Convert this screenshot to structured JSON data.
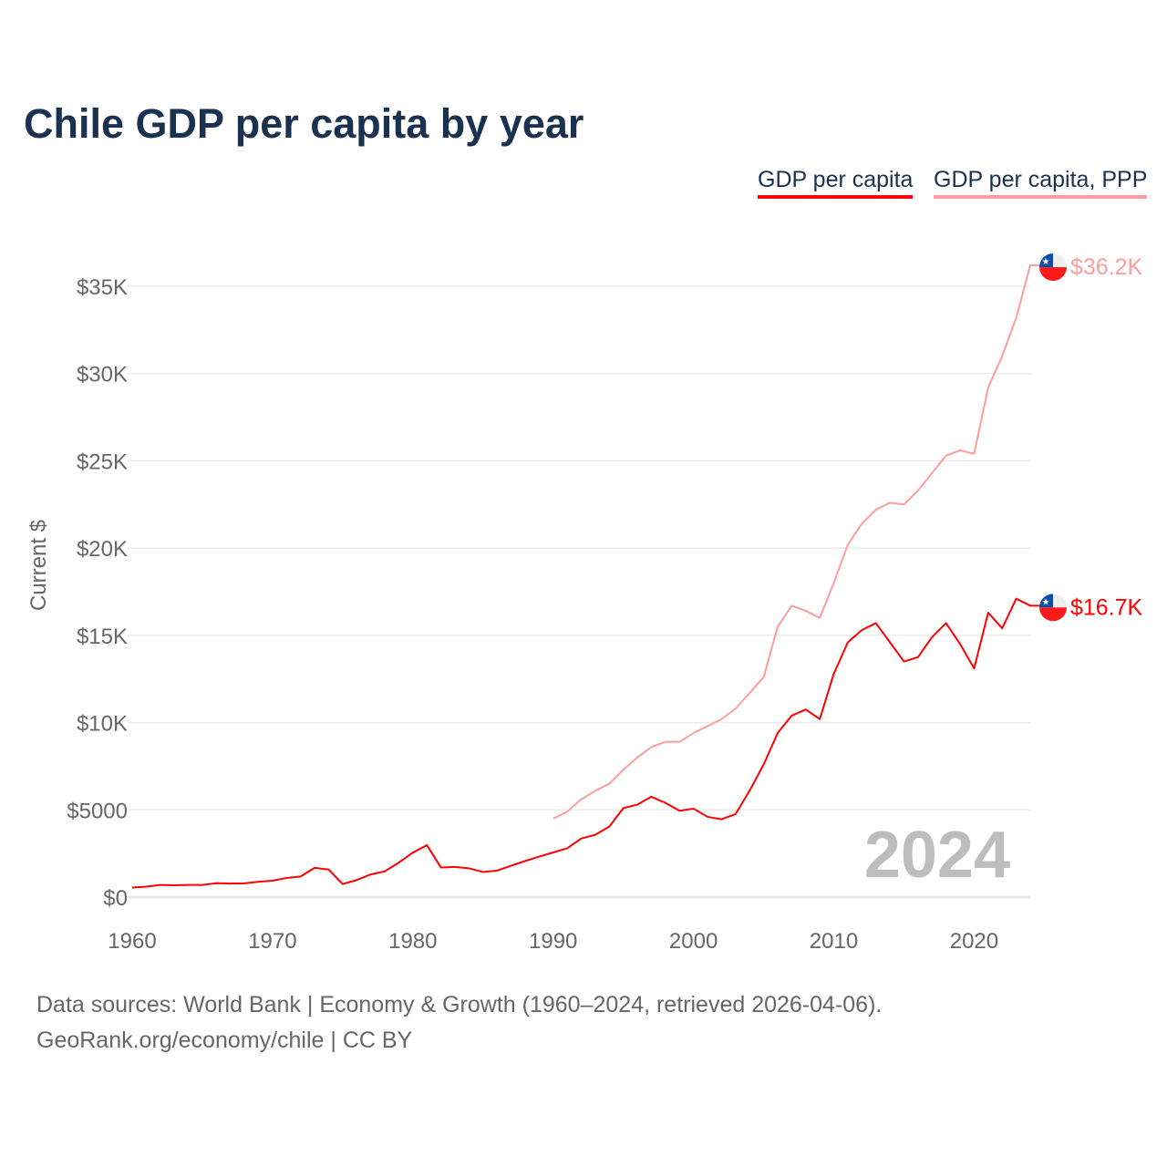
{
  "title": "Chile GDP per capita by year",
  "legend": [
    {
      "label": "GDP per capita",
      "color": "#ff0000"
    },
    {
      "label": "GDP per capita, PPP",
      "color": "#ff9d9d"
    }
  ],
  "footer": {
    "line1": "Data sources: World Bank | Economy & Growth (1960–2024, retrieved 2026-04-06).",
    "line2": "GeoRank.org/economy/chile | CC BY"
  },
  "chart_data": {
    "type": "line",
    "title": "Chile GDP per capita by year",
    "ylabel": "Current $",
    "xlabel": "",
    "xlim": [
      1960,
      2024
    ],
    "ylim": [
      0,
      35000
    ],
    "grid": true,
    "legend_position": "top-right",
    "year_watermark": "2024",
    "x_ticks": [
      1960,
      1970,
      1980,
      1990,
      2000,
      2010,
      2020
    ],
    "x_tick_labels": [
      "1960",
      "1970",
      "1980",
      "1990",
      "2000",
      "2010",
      "2020"
    ],
    "y_ticks": [
      0,
      5000,
      10000,
      15000,
      20000,
      25000,
      30000,
      35000
    ],
    "y_tick_labels": [
      "$0",
      "$5000",
      "$10K",
      "$15K",
      "$20K",
      "$25K",
      "$30K",
      "$35K"
    ],
    "series": [
      {
        "name": "GDP per capita",
        "color": "#ff0000",
        "start_year": 1960,
        "end_label": "$16.7K",
        "values": [
          550,
          600,
          700,
          680,
          700,
          700,
          800,
          780,
          790,
          880,
          940,
          1100,
          1180,
          1680,
          1580,
          750,
          980,
          1300,
          1480,
          1980,
          2550,
          2980,
          1700,
          1730,
          1650,
          1440,
          1520,
          1800,
          2070,
          2320,
          2560,
          2800,
          3360,
          3570,
          4040,
          5100,
          5300,
          5750,
          5400,
          4950,
          5070,
          4600,
          4460,
          4760,
          6100,
          7600,
          9400,
          10400,
          10750,
          10200,
          12800,
          14600,
          15300,
          15700,
          14600,
          13500,
          13750,
          14900,
          15700,
          14500,
          13100,
          16300,
          15400,
          17100,
          16700
        ]
      },
      {
        "name": "GDP per capita, PPP",
        "color": "#ff9d9d",
        "start_year": 1990,
        "end_label": "$36.2K",
        "values": [
          4500,
          4900,
          5600,
          6100,
          6500,
          7300,
          8000,
          8600,
          8900,
          8900,
          9400,
          9800,
          10200,
          10800,
          11700,
          12600,
          15500,
          16700,
          16400,
          16000,
          18000,
          20200,
          21400,
          22200,
          22600,
          22500,
          23300,
          24300,
          25300,
          25600,
          25400,
          29200,
          31000,
          33200,
          36200
        ]
      }
    ]
  }
}
